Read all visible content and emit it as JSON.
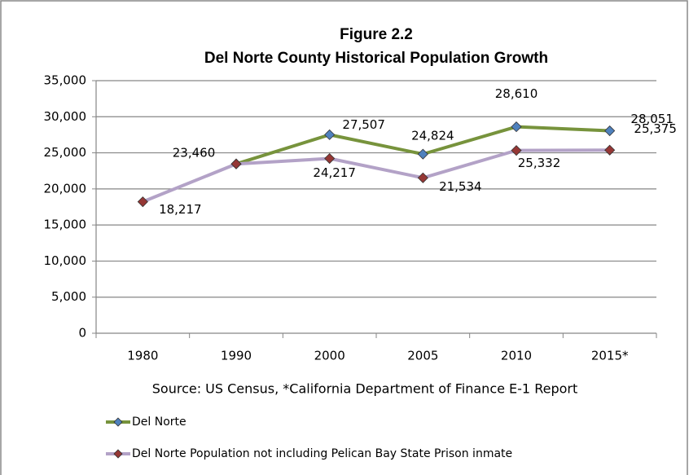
{
  "chart_data": {
    "type": "line",
    "title": "Figure 2.2",
    "subtitle": "Del Norte County Historical Population Growth",
    "source": "Source: US Census, *California Department of Finance E-1 Report",
    "categories": [
      "1980",
      "1990",
      "2000",
      "2005",
      "2010",
      "2015*"
    ],
    "series": [
      {
        "name": "Del Norte",
        "color": "#77933c",
        "marker_color": "#4f81bd",
        "values": [
          null,
          23460,
          27507,
          24824,
          28610,
          28051
        ],
        "value_labels": [
          null,
          "23,460",
          "27,507",
          "24,824",
          "28,610",
          "28,051"
        ]
      },
      {
        "name": "Del Norte Population not including Pelican Bay State Prison inmate",
        "color": "#b3a2c7",
        "marker_color": "#953735",
        "values": [
          18217,
          23460,
          24217,
          21534,
          25332,
          25375
        ],
        "value_labels": [
          "18,217",
          null,
          "24,217",
          "21,534",
          "25,332",
          "25,375"
        ]
      }
    ],
    "ylim": [
      0,
      35000
    ],
    "yticks": [
      0,
      {
        "value": 5000,
        "label": "5,000"
      },
      {
        "value": 10000,
        "label": "10,000"
      },
      {
        "value": 15000,
        "label": "15,000"
      },
      {
        "value": 20000,
        "label": "20,000"
      },
      {
        "value": 25000,
        "label": "25,000"
      },
      {
        "value": 30000,
        "label": "30,000"
      },
      {
        "value": 35000,
        "label": "35,000"
      }
    ],
    "grid": true,
    "legend": "bottom"
  }
}
